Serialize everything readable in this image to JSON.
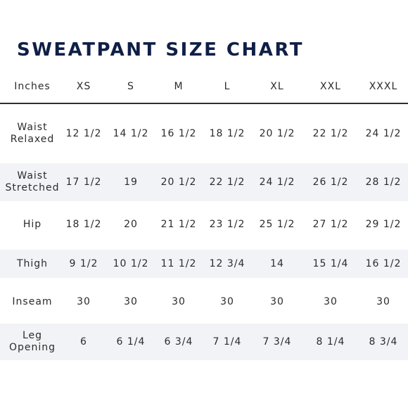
{
  "title": "SWEATPANT SIZE CHART",
  "columns": [
    "Inches",
    "XS",
    "S",
    "M",
    "L",
    "XL",
    "XXL",
    "XXXL"
  ],
  "rows": [
    {
      "label": [
        "Waist",
        "Relaxed"
      ],
      "values": [
        "12 1/2",
        "14 1/2",
        "16 1/2",
        "18 1/2",
        "20 1/2",
        "22 1/2",
        "24 1/2"
      ],
      "shaded": false
    },
    {
      "label": [
        "Waist",
        "Stretched"
      ],
      "values": [
        "17 1/2",
        "19",
        "20 1/2",
        "22 1/2",
        "24 1/2",
        "26 1/2",
        "28 1/2"
      ],
      "shaded": true
    },
    {
      "label": [
        "Hip"
      ],
      "values": [
        "18 1/2",
        "20",
        "21 1/2",
        "23 1/2",
        "25 1/2",
        "27 1/2",
        "29 1/2"
      ],
      "shaded": false
    },
    {
      "label": [
        "Thigh"
      ],
      "values": [
        "9 1/2",
        "10 1/2",
        "11 1/2",
        "12 3/4",
        "14",
        "15 1/4",
        "16 1/2"
      ],
      "shaded": true
    },
    {
      "label": [
        "Inseam"
      ],
      "values": [
        "30",
        "30",
        "30",
        "30",
        "30",
        "30",
        "30"
      ],
      "shaded": false
    },
    {
      "label": [
        "Leg",
        "Opening"
      ],
      "values": [
        "6",
        "6 1/4",
        "6 3/4",
        "7 1/4",
        "7 3/4",
        "8 1/4",
        "8 3/4"
      ],
      "shaded": true
    }
  ],
  "colors": {
    "title": "#0f1f47",
    "text": "#2b2b2b",
    "row_shade": "#f2f3f6",
    "divider": "#2f2f2f"
  }
}
